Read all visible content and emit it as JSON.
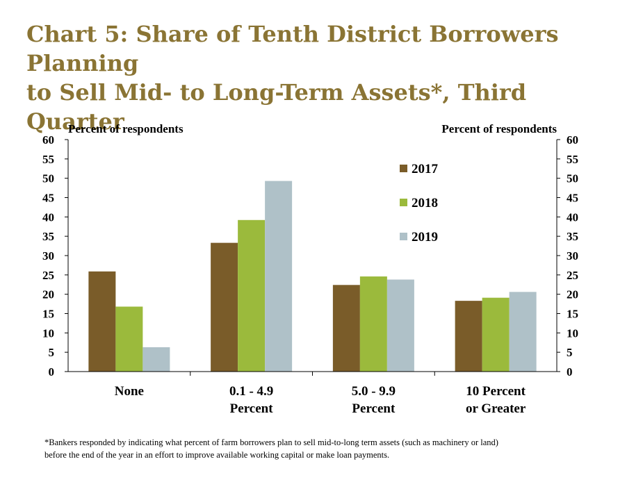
{
  "title_lines": [
    "Chart 5: Share of Tenth District Borrowers Planning",
    "to Sell Mid- to Long-Term Assets*, Third Quarter"
  ],
  "footnote_lines": [
    "*Bankers responded by indicating what percent of farm borrowers plan to sell mid-to-long term assets (such as machinery or land)",
    "before the end of the year in an effort to improve available working capital or make loan payments."
  ],
  "chart_data": {
    "type": "bar",
    "title": "Chart 5: Share of Tenth District Borrowers Planning to Sell Mid- to Long-Term Assets*, Third Quarter",
    "ylabel_left": "Percent of respondents",
    "ylabel_right": "Percent of respondents",
    "ylim": [
      0,
      60
    ],
    "ytick_step": 5,
    "yticks": [
      "0",
      "5",
      "10",
      "15",
      "20",
      "25",
      "30",
      "35",
      "40",
      "45",
      "50",
      "55",
      "60"
    ],
    "grid": false,
    "legend_position": "upper-center",
    "categories": [
      [
        "None"
      ],
      [
        "0.1 - 4.9",
        "Percent"
      ],
      [
        "5.0 - 9.9",
        "Percent"
      ],
      [
        "10 Percent",
        "or Greater"
      ]
    ],
    "series": [
      {
        "name": "2017",
        "color": "#7a5c29",
        "values": [
          25.9,
          33.3,
          22.4,
          18.3
        ]
      },
      {
        "name": "2018",
        "color": "#9bba3c",
        "values": [
          16.8,
          39.2,
          24.6,
          19.1
        ]
      },
      {
        "name": "2019",
        "color": "#afc1c8",
        "values": [
          6.3,
          49.3,
          23.8,
          20.6
        ]
      }
    ]
  }
}
